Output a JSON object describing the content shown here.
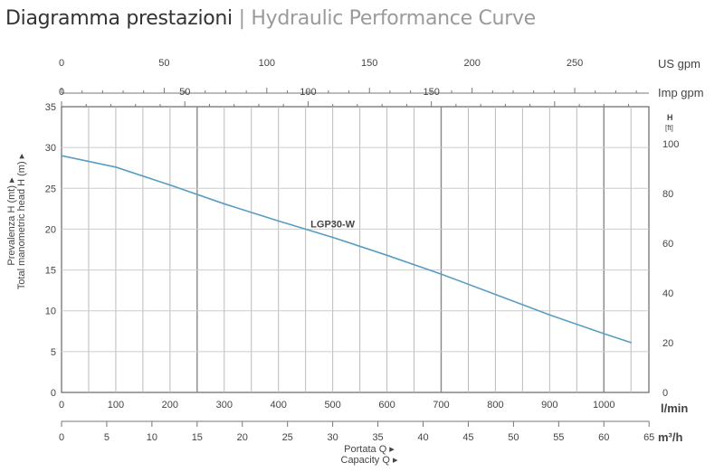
{
  "header": {
    "title_it": "Diagramma prestazioni",
    "separator": " | ",
    "title_en": "Hydraulic Performance Curve"
  },
  "chart_data": {
    "type": "line",
    "series": [
      {
        "name": "LGP30-W",
        "color": "#5a9cc4",
        "x": [
          0,
          100,
          200,
          300,
          400,
          500,
          600,
          700,
          800,
          900,
          1000,
          1050
        ],
        "y": [
          29,
          27.6,
          25.4,
          23.1,
          21.0,
          19.0,
          16.8,
          14.5,
          12.0,
          9.5,
          7.2,
          6.1
        ]
      }
    ],
    "x_axis": {
      "label": "l/min",
      "range": [
        0,
        1083
      ],
      "ticks": [
        0,
        100,
        200,
        300,
        400,
        500,
        600,
        700,
        800,
        900,
        1000
      ]
    },
    "x_axis_m3h": {
      "label": "m³/h",
      "range": [
        0,
        65
      ],
      "ticks": [
        0,
        5,
        10,
        15,
        20,
        25,
        30,
        35,
        40,
        45,
        50,
        55,
        60,
        65
      ]
    },
    "x_axis_usgpm": {
      "label": "US gpm",
      "ticks": [
        0,
        50,
        100,
        150,
        200,
        250
      ]
    },
    "x_axis_impgpm": {
      "label": "Imp gpm",
      "ticks": [
        0,
        50,
        100,
        150
      ]
    },
    "y_axis": {
      "label_it": "Prevalenza H (mt) ▸",
      "label_en": "Total manometric head H (m) ▸",
      "range": [
        0,
        35
      ],
      "ticks": [
        0,
        5,
        10,
        15,
        20,
        25,
        30,
        35
      ]
    },
    "y_axis_ft": {
      "label_top": "H",
      "label_unit": "[ft]",
      "ticks": [
        0,
        20,
        40,
        60,
        80,
        100
      ]
    },
    "xlabel_it": "Portata Q ▸",
    "xlabel_en": "Capacity Q ▸",
    "grid": true
  }
}
